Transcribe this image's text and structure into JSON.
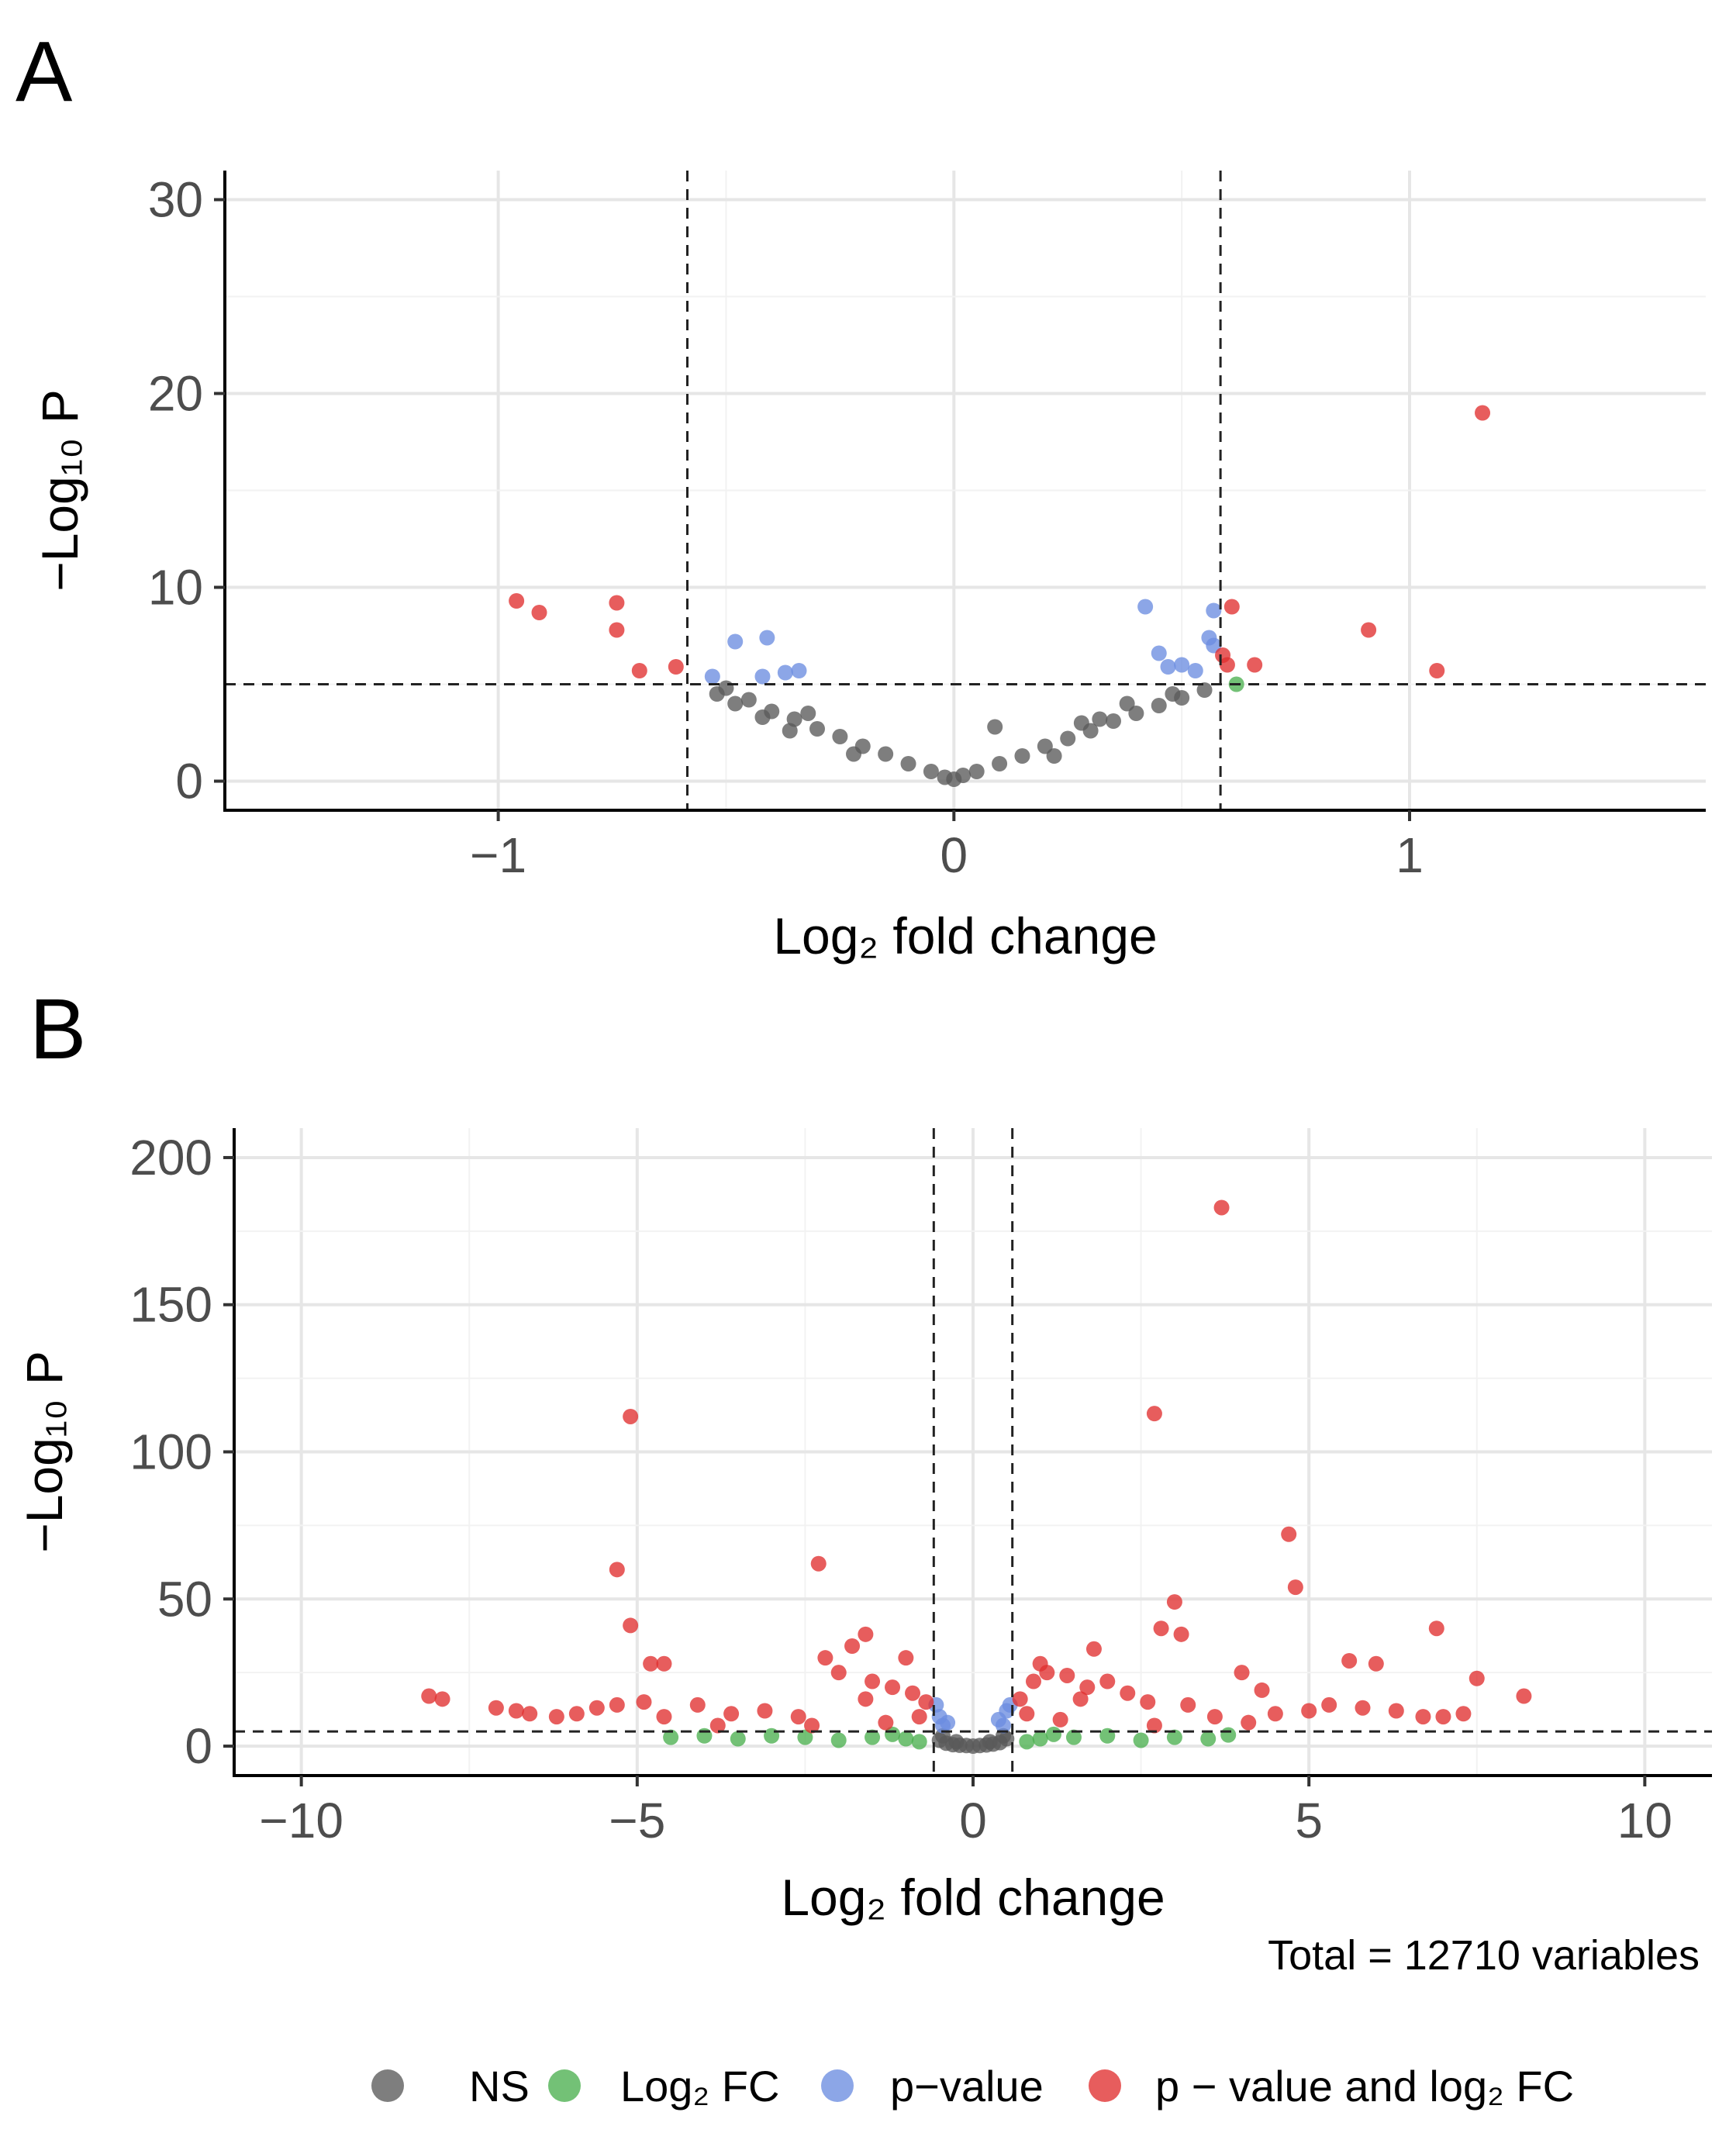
{
  "figure": {
    "legend": {
      "items": [
        {
          "key": "NS",
          "label": "NS",
          "color": "#5a5a5a"
        },
        {
          "key": "FC",
          "label": "Log₂ FC",
          "color": "#4caf50"
        },
        {
          "key": "P",
          "label": "p−value",
          "color": "#6b8de0"
        },
        {
          "key": "PFC",
          "label": "p − value and log₂ FC",
          "color": "#e03030"
        }
      ]
    },
    "caption": "Total = 12710 variables"
  },
  "chart_data": [
    {
      "type": "scatter",
      "panel": "A",
      "title": "",
      "xlabel": "Log₂ fold change",
      "ylabel": "−Log₁₀ P",
      "xlim": [
        -1.6,
        1.65
      ],
      "ylim": [
        -1.5,
        31.5
      ],
      "xticks": [
        -1,
        0,
        1
      ],
      "xtick_labels": [
        "−1",
        "0",
        "1"
      ],
      "yticks": [
        0,
        10,
        20,
        30
      ],
      "ytick_labels": [
        "0",
        "10",
        "20",
        "30"
      ],
      "grid": true,
      "thresholds": {
        "x": [
          -0.585,
          0.585
        ],
        "y": 5
      },
      "series": [
        {
          "name": "NS",
          "color_key": "NS",
          "points": [
            [
              -0.52,
              4.5
            ],
            [
              -0.5,
              4.8
            ],
            [
              -0.45,
              4.2
            ],
            [
              -0.4,
              3.6
            ],
            [
              -0.35,
              3.2
            ],
            [
              -0.3,
              2.7
            ],
            [
              -0.25,
              2.3
            ],
            [
              -0.2,
              1.8
            ],
            [
              -0.15,
              1.4
            ],
            [
              -0.1,
              0.9
            ],
            [
              -0.05,
              0.5
            ],
            [
              0,
              0.1
            ],
            [
              0.05,
              0.5
            ],
            [
              0.1,
              0.9
            ],
            [
              0.15,
              1.3
            ],
            [
              0.2,
              1.8
            ],
            [
              0.25,
              2.2
            ],
            [
              0.3,
              2.6
            ],
            [
              0.35,
              3.1
            ],
            [
              0.4,
              3.5
            ],
            [
              0.45,
              3.9
            ],
            [
              0.5,
              4.3
            ],
            [
              0.55,
              4.7
            ],
            [
              -0.42,
              3.3
            ],
            [
              -0.36,
              2.6
            ],
            [
              -0.32,
              3.5
            ],
            [
              0.32,
              3.2
            ],
            [
              0.38,
              4.0
            ],
            [
              0.28,
              3.0
            ],
            [
              -0.22,
              1.4
            ],
            [
              0.22,
              1.3
            ],
            [
              0.09,
              2.8
            ],
            [
              -0.02,
              0.2
            ],
            [
              0.02,
              0.3
            ],
            [
              -0.48,
              4.0
            ],
            [
              0.48,
              4.5
            ]
          ]
        },
        {
          "name": "p-value",
          "color_key": "P",
          "points": [
            [
              -0.53,
              5.4
            ],
            [
              -0.48,
              7.2
            ],
            [
              -0.41,
              7.4
            ],
            [
              -0.42,
              5.4
            ],
            [
              -0.37,
              5.6
            ],
            [
              -0.34,
              5.7
            ],
            [
              0.42,
              9.0
            ],
            [
              0.45,
              6.6
            ],
            [
              0.5,
              6.0
            ],
            [
              0.53,
              5.7
            ],
            [
              0.57,
              7.0
            ],
            [
              0.57,
              8.8
            ],
            [
              0.56,
              7.4
            ],
            [
              0.47,
              5.9
            ]
          ]
        },
        {
          "name": "p-value and log2 FC",
          "color_key": "PFC",
          "points": [
            [
              -0.96,
              9.3
            ],
            [
              -0.91,
              8.7
            ],
            [
              -0.74,
              9.2
            ],
            [
              -0.74,
              7.8
            ],
            [
              -0.69,
              5.7
            ],
            [
              -0.61,
              5.9
            ],
            [
              0.61,
              9.0
            ],
            [
              0.59,
              6.5
            ],
            [
              0.6,
              6.0
            ],
            [
              0.66,
              6.0
            ],
            [
              0.91,
              7.8
            ],
            [
              1.06,
              5.7
            ],
            [
              1.16,
              19.0
            ]
          ]
        },
        {
          "name": "Log2 FC",
          "color_key": "FC",
          "points": [
            [
              0.62,
              5.0
            ]
          ]
        }
      ]
    },
    {
      "type": "scatter",
      "panel": "B",
      "title": "",
      "xlabel": "Log₂ fold change",
      "ylabel": "−Log₁₀ P",
      "xlim": [
        -11,
        11
      ],
      "ylim": [
        -10,
        210
      ],
      "xticks": [
        -10,
        -5,
        0,
        5,
        10
      ],
      "xtick_labels": [
        "−10",
        "−5",
        "0",
        "5",
        "10"
      ],
      "yticks": [
        0,
        50,
        100,
        150,
        200
      ],
      "ytick_labels": [
        "0",
        "50",
        "100",
        "150",
        "200"
      ],
      "grid": true,
      "thresholds": {
        "x": [
          -0.585,
          0.585
        ],
        "y": 5
      },
      "series": [
        {
          "name": "NS",
          "color_key": "NS",
          "points": [
            [
              -0.5,
              2
            ],
            [
              -0.4,
              1
            ],
            [
              -0.3,
              0.5
            ],
            [
              -0.2,
              0.3
            ],
            [
              -0.1,
              0.2
            ],
            [
              0,
              0
            ],
            [
              0.1,
              0.2
            ],
            [
              0.2,
              0.4
            ],
            [
              0.3,
              0.7
            ],
            [
              0.4,
              1.2
            ],
            [
              0.5,
              2.5
            ],
            [
              -0.45,
              3.5
            ],
            [
              0.45,
              3.5
            ],
            [
              -0.25,
              1.5
            ],
            [
              0.25,
              1.5
            ]
          ]
        },
        {
          "name": "Log2 FC",
          "color_key": "FC",
          "points": [
            [
              -4.5,
              3
            ],
            [
              -4,
              3.5
            ],
            [
              -3.5,
              2.5
            ],
            [
              -3,
              3.5
            ],
            [
              -2.5,
              3
            ],
            [
              -2,
              2
            ],
            [
              -1.5,
              3
            ],
            [
              -1,
              2.5
            ],
            [
              1,
              2.5
            ],
            [
              1.5,
              3
            ],
            [
              2,
              3.5
            ],
            [
              2.5,
              2
            ],
            [
              3,
              3
            ],
            [
              3.5,
              2.5
            ],
            [
              -1.2,
              4
            ],
            [
              1.2,
              4
            ],
            [
              0.8,
              1.5
            ],
            [
              -0.8,
              1.5
            ],
            [
              3.8,
              3.8
            ]
          ]
        },
        {
          "name": "p-value",
          "color_key": "P",
          "points": [
            [
              -0.55,
              14
            ],
            [
              -0.5,
              10
            ],
            [
              -0.45,
              7
            ],
            [
              0.45,
              7
            ],
            [
              0.5,
              12
            ],
            [
              0.55,
              14
            ],
            [
              -0.38,
              8
            ],
            [
              0.38,
              9
            ]
          ]
        },
        {
          "name": "p-value and log2 FC",
          "color_key": "PFC",
          "points": [
            [
              3.7,
              183
            ],
            [
              -5.1,
              112
            ],
            [
              2.7,
              113
            ],
            [
              4.7,
              72
            ],
            [
              -5.3,
              60
            ],
            [
              -2.3,
              62
            ],
            [
              4.8,
              54
            ],
            [
              3.0,
              49
            ],
            [
              -5.1,
              41
            ],
            [
              6.9,
              40
            ],
            [
              2.8,
              40
            ],
            [
              3.1,
              38
            ],
            [
              -1.6,
              38
            ],
            [
              -2.2,
              30
            ],
            [
              -1.8,
              34
            ],
            [
              1.8,
              33
            ],
            [
              -4.8,
              28
            ],
            [
              -4.6,
              28
            ],
            [
              5.6,
              29
            ],
            [
              6.0,
              28
            ],
            [
              7.5,
              23
            ],
            [
              8.2,
              17
            ],
            [
              -8.1,
              17
            ],
            [
              -7.9,
              16
            ],
            [
              -7.1,
              13
            ],
            [
              -6.8,
              12
            ],
            [
              -6.6,
              11
            ],
            [
              -6.2,
              10
            ],
            [
              -5.9,
              11
            ],
            [
              -5.6,
              13
            ],
            [
              -5.3,
              14
            ],
            [
              -4.9,
              15
            ],
            [
              -4.1,
              14
            ],
            [
              -3.6,
              11
            ],
            [
              -3.1,
              12
            ],
            [
              -2.6,
              10
            ],
            [
              -2.0,
              25
            ],
            [
              -1.5,
              22
            ],
            [
              -1.2,
              20
            ],
            [
              -0.9,
              18
            ],
            [
              -0.7,
              15
            ],
            [
              0.7,
              16
            ],
            [
              0.9,
              22
            ],
            [
              1.1,
              25
            ],
            [
              1.4,
              24
            ],
            [
              1.7,
              20
            ],
            [
              2.0,
              22
            ],
            [
              2.3,
              18
            ],
            [
              2.6,
              15
            ],
            [
              3.2,
              14
            ],
            [
              3.6,
              10
            ],
            [
              4.1,
              8
            ],
            [
              4.5,
              11
            ],
            [
              5.0,
              12
            ],
            [
              5.3,
              14
            ],
            [
              5.8,
              13
            ],
            [
              6.3,
              12
            ],
            [
              6.7,
              10
            ],
            [
              7.0,
              10
            ],
            [
              7.3,
              11
            ],
            [
              -2.4,
              7
            ],
            [
              -1.3,
              8
            ],
            [
              1.3,
              9
            ],
            [
              2.7,
              7
            ],
            [
              -3.8,
              7
            ],
            [
              -4.6,
              10
            ],
            [
              4.0,
              25
            ],
            [
              4.3,
              19
            ],
            [
              -1.0,
              30
            ],
            [
              1.0,
              28
            ],
            [
              -1.6,
              16
            ],
            [
              1.6,
              16
            ],
            [
              -0.8,
              10
            ],
            [
              0.8,
              11
            ]
          ]
        }
      ]
    }
  ]
}
